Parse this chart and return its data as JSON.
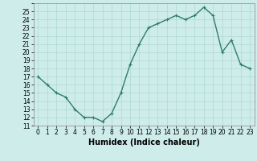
{
  "x": [
    0,
    1,
    2,
    3,
    4,
    5,
    6,
    7,
    8,
    9,
    10,
    11,
    12,
    13,
    14,
    15,
    16,
    17,
    18,
    19,
    20,
    21,
    22,
    23
  ],
  "y": [
    17,
    16,
    15,
    14.5,
    13,
    12,
    12,
    11.5,
    12.5,
    15,
    18.5,
    21,
    23,
    23.5,
    24,
    24.5,
    24,
    24.5,
    25.5,
    24.5,
    20,
    21.5,
    18.5,
    18
  ],
  "line_color": "#2e7d6e",
  "marker": "+",
  "bg_color": "#ceecea",
  "grid_color_major": "#aed8d4",
  "grid_color_minor": "#c0e4e0",
  "xlabel": "Humidex (Indice chaleur)",
  "xlabel_fontsize": 7,
  "ylim": [
    11,
    26
  ],
  "xlim": [
    -0.5,
    23.5
  ],
  "yticks": [
    11,
    12,
    13,
    14,
    15,
    16,
    17,
    18,
    19,
    20,
    21,
    22,
    23,
    24,
    25
  ],
  "xticks": [
    0,
    1,
    2,
    3,
    4,
    5,
    6,
    7,
    8,
    9,
    10,
    11,
    12,
    13,
    14,
    15,
    16,
    17,
    18,
    19,
    20,
    21,
    22,
    23
  ],
  "tick_fontsize": 5.5,
  "linewidth": 1.0,
  "markersize": 3,
  "markeredgewidth": 0.8
}
